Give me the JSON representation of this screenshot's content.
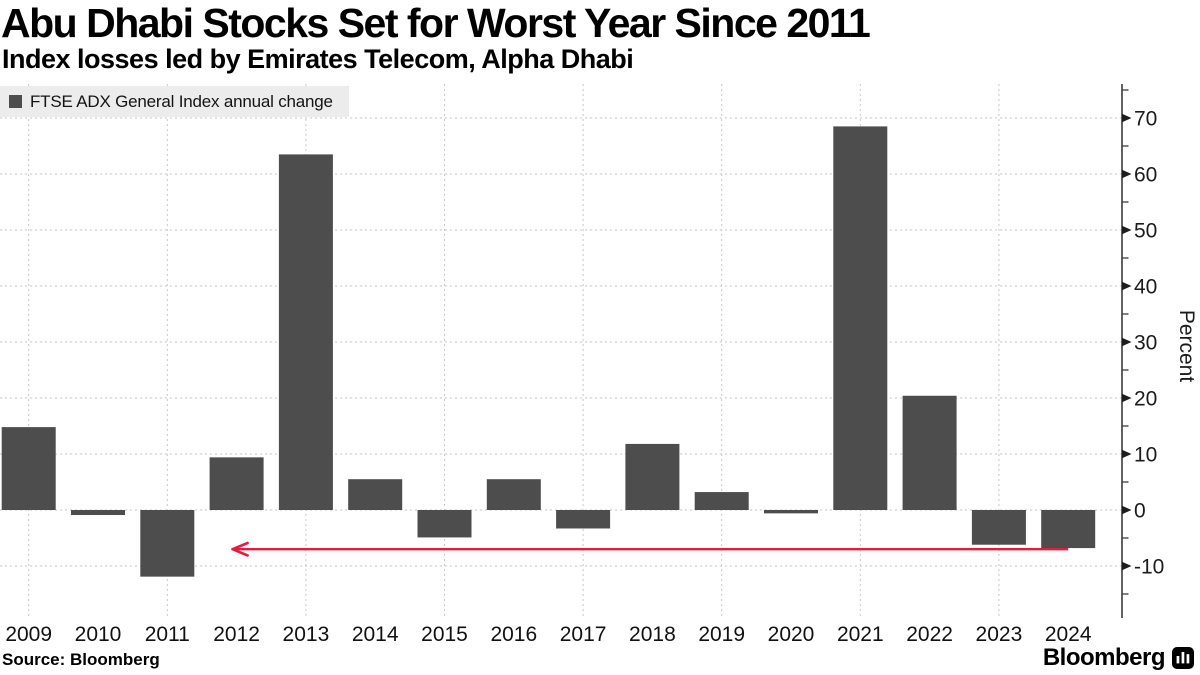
{
  "header": {
    "title": "Abu Dhabi Stocks Set for Worst Year Since 2011",
    "subtitle": "Index losses led by Emirates Telecom, Alpha Dhabi"
  },
  "legend": {
    "label": "FTSE ADX General Index annual change"
  },
  "chart_data": {
    "type": "bar",
    "title": "FTSE ADX General Index annual change",
    "categories": [
      "2009",
      "2010",
      "2011",
      "2012",
      "2013",
      "2014",
      "2015",
      "2016",
      "2017",
      "2018",
      "2019",
      "2020",
      "2021",
      "2022",
      "2023",
      "2024"
    ],
    "values": [
      14.8,
      -0.9,
      -11.9,
      9.4,
      63.5,
      5.5,
      -4.9,
      5.5,
      -3.3,
      11.8,
      3.2,
      -0.6,
      68.5,
      20.4,
      -6.2,
      -6.8
    ],
    "ylabel": "Percent",
    "ylim": [
      -19,
      76
    ],
    "yticks": [
      -10,
      0,
      10,
      20,
      30,
      40,
      50,
      60,
      70
    ],
    "minor_tick_step": 5,
    "grid": {
      "horizontal": "dashed at yticks",
      "vertical": "dashed at odd years"
    },
    "legend_position": "top-left",
    "axis_side": "right",
    "annotation_arrow": {
      "y": -7,
      "from_category": "2024",
      "to_category": "2012",
      "direction": "left"
    },
    "colors": {
      "bar": "#4d4d4d",
      "arrow": "#e81a3d",
      "grid": "#c6c6c6",
      "axis": "#3c3c3c",
      "tick_text": "#1c1c1c",
      "legend_bg": "#ececec"
    }
  },
  "footer": {
    "source": "Source: Bloomberg",
    "brand": "Bloomberg",
    "brand_icon": "bloomberg-terminal-icon"
  }
}
